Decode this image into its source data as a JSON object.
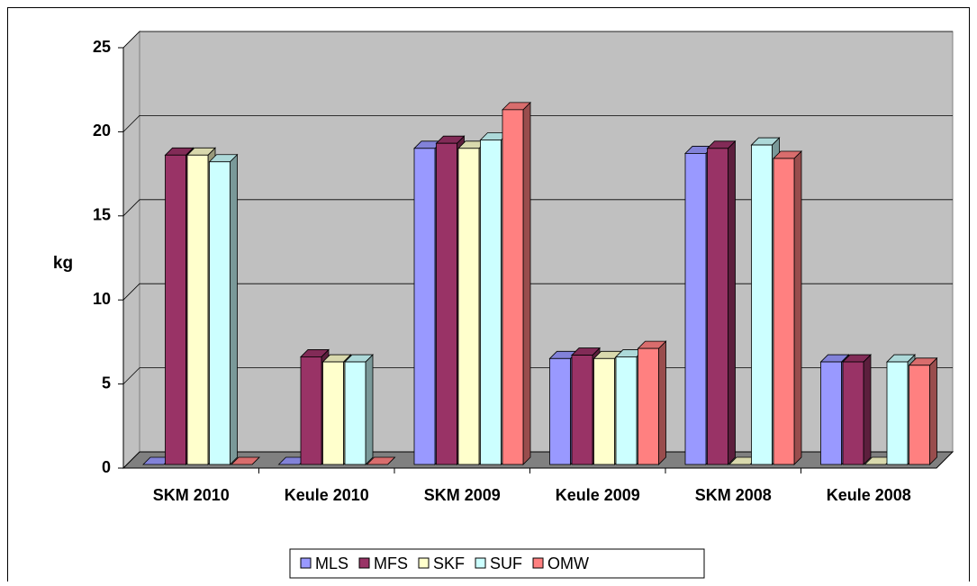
{
  "chart_data": {
    "type": "bar3d",
    "y_label": "kg",
    "categories": [
      "SKM 2010",
      "Keule 2010",
      "SKM 2009",
      "Keule 2009",
      "SKM 2008",
      "Keule 2008"
    ],
    "series": [
      {
        "name": "MLS",
        "color": "#9999ff",
        "values": [
          0,
          0,
          18.8,
          6.3,
          18.5,
          6.1
        ]
      },
      {
        "name": "MFS",
        "color": "#993366",
        "values": [
          18.4,
          6.4,
          19.1,
          6.5,
          18.8,
          6.1
        ]
      },
      {
        "name": "SKF",
        "color": "#ffffcc",
        "values": [
          18.4,
          6.1,
          18.8,
          6.3,
          0,
          0
        ]
      },
      {
        "name": "SUF",
        "color": "#ccffff",
        "values": [
          18.0,
          6.1,
          19.3,
          6.4,
          19.0,
          6.1
        ]
      },
      {
        "name": "OMW",
        "color": "#ff8080",
        "values": [
          0,
          0,
          21.1,
          6.9,
          18.2,
          5.9
        ]
      }
    ],
    "ylim": [
      0,
      25
    ],
    "yticks": [
      0,
      5,
      10,
      15,
      20,
      25
    ],
    "grid": true,
    "legend": "bottom"
  }
}
